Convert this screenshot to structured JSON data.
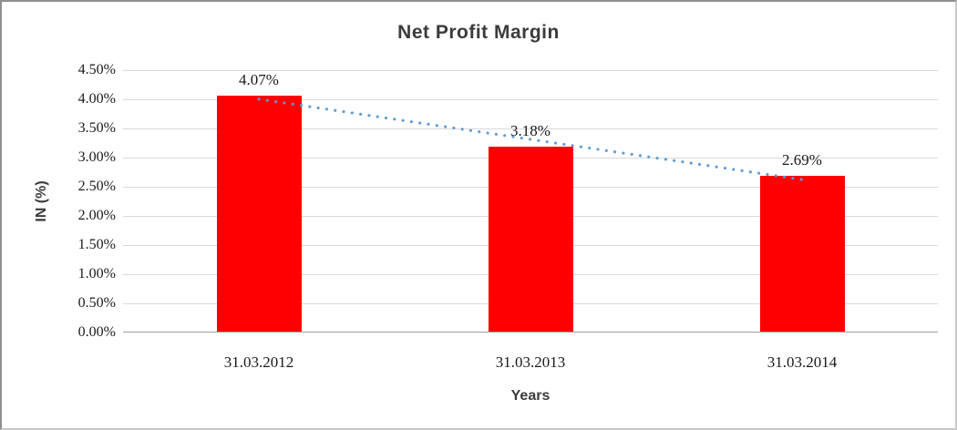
{
  "chart_data": {
    "type": "bar",
    "title": "Net Profit Margin",
    "xlabel": "Years",
    "ylabel": "IN (%)",
    "categories": [
      "31.03.2012",
      "31.03.2013",
      "31.03.2014"
    ],
    "values": [
      4.07,
      3.18,
      2.69
    ],
    "data_labels": [
      "4.07%",
      "3.18%",
      "2.69%"
    ],
    "ytick_labels": [
      "0.00%",
      "0.50%",
      "1.00%",
      "1.50%",
      "2.00%",
      "2.50%",
      "3.00%",
      "3.50%",
      "4.00%",
      "4.50%"
    ],
    "ytick_values": [
      0,
      0.5,
      1,
      1.5,
      2,
      2.5,
      3,
      3.5,
      4,
      4.5
    ],
    "ylim": [
      0,
      4.5
    ],
    "grid": true,
    "legend": "none",
    "bar_color": "#fe0000",
    "gridline_color": "#d9d9d9",
    "axis_line_color": "#9e9e9e",
    "text_color": "#1a1a1a",
    "title_color": "#3b3b3b",
    "trendline": {
      "type": "linear",
      "style": "dotted",
      "color": "#5b9bd5"
    }
  }
}
